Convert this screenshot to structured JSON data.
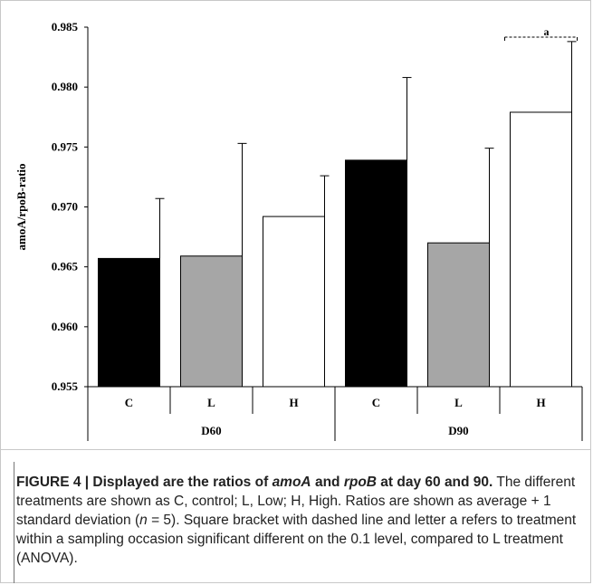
{
  "chart_data": {
    "type": "bar",
    "title": "",
    "ylabel": "amoA/rpoB-ratio",
    "xlabel": "",
    "ylim": [
      0.955,
      0.985
    ],
    "yticks": [
      "0.955",
      "0.960",
      "0.965",
      "0.970",
      "0.975",
      "0.980",
      "0.985"
    ],
    "groups": [
      "D60",
      "D90"
    ],
    "categories": [
      "C",
      "L",
      "H",
      "C",
      "L",
      "H"
    ],
    "values": [
      0.9657,
      0.9659,
      0.9692,
      0.9739,
      0.967,
      0.9779
    ],
    "errors": [
      0.005,
      0.0094,
      0.0034,
      0.0069,
      0.0079,
      0.0059
    ],
    "colors": [
      "#000000",
      "#a6a6a6",
      "#ffffff",
      "#000000",
      "#a6a6a6",
      "#ffffff"
    ],
    "annotations": [
      {
        "text": "a",
        "target_index": 5
      }
    ],
    "grid": false
  },
  "caption": {
    "title_part1": "FIGURE 4 | Displayed are the ratios of ",
    "gene1": "amoA",
    "title_part2": " and ",
    "gene2": "rpoB",
    "title_part3": " at day 60 and 90.",
    "text1": " The different treatments are shown as C, control; L, Low; H, High. Ratios are shown as average + 1 standard deviation (",
    "n_var": "n",
    "text2": " = 5). Square bracket with dashed line and letter a refers to treatment within a sampling occasion significant different on the 0.1 level, compared to L treatment (ANOVA)."
  }
}
